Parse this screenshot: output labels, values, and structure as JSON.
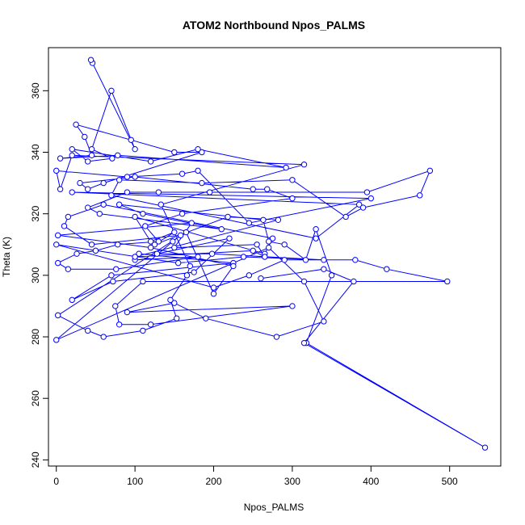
{
  "chart_data": {
    "type": "line",
    "title": "ATOM2 Northbound Npos_PALMS",
    "xlabel": "Npos_PALMS",
    "ylabel": "Theta (K)",
    "xlim": [
      -10,
      565
    ],
    "ylim": [
      238,
      374
    ],
    "xticks": [
      0,
      100,
      200,
      300,
      400,
      500
    ],
    "yticks": [
      240,
      260,
      280,
      300,
      320,
      340,
      360
    ],
    "series": [
      {
        "color": "#0000ff",
        "marker": "open-circle",
        "x": [
          46,
          44,
          100,
          70,
          45,
          71,
          40,
          20,
          120,
          180,
          292,
          78,
          5,
          45,
          36,
          25,
          95,
          150,
          185,
          60,
          40,
          30,
          100,
          250,
          268,
          300,
          160,
          113,
          130,
          78,
          50,
          26,
          2,
          15,
          76,
          180,
          100,
          105,
          225,
          70,
          20,
          72,
          175,
          220,
          128,
          198,
          340,
          238,
          155,
          0,
          200,
          245,
          290,
          380,
          420,
          497,
          110,
          75,
          80,
          120,
          300,
          90,
          150,
          190,
          280,
          340,
          315,
          270,
          0,
          148,
          158,
          45,
          10,
          15,
          60,
          275,
          265,
          100,
          120,
          150,
          125,
          218,
          282,
          100,
          250,
          265,
          255,
          150,
          172,
          2,
          120,
          225,
          200,
          165,
          2,
          40,
          60,
          110,
          153,
          145,
          166,
          170,
          133,
          315,
          20,
          5,
          0,
          90,
          160,
          180,
          245,
          400,
          20,
          385,
          330,
          70,
          80,
          185,
          300,
          368,
          390,
          462,
          475,
          395,
          195,
          130,
          90,
          40,
          55,
          210,
          110,
          80,
          263,
          270,
          290,
          317,
          330,
          350,
          318,
          545,
          315,
          378,
          340,
          260
        ],
        "y": [
          369,
          370,
          341,
          360,
          341,
          338,
          337,
          341,
          337,
          341,
          335,
          339,
          338,
          339,
          345,
          349,
          344,
          340,
          340,
          330,
          328,
          330,
          332,
          328,
          328,
          325,
          320,
          316,
          311,
          310,
          308,
          307,
          304,
          302,
          302,
          306,
          305,
          307,
          304,
          300,
          292,
          298,
          301,
          312,
          307,
          307,
          305,
          306,
          304,
          310,
          296,
          300,
          305,
          305,
          302,
          298,
          298,
          290,
          284,
          284,
          290,
          288,
          291,
          286,
          280,
          285,
          298,
          309,
          279,
          311,
          313,
          310,
          316,
          319,
          323,
          312,
          307,
          319,
          311,
          314,
          310,
          319,
          318,
          306,
          308,
          306,
          310,
          309,
          317,
          313,
          309,
          303,
          294,
          314,
          287,
          282,
          280,
          282,
          286,
          292,
          300,
          303,
          323,
          336,
          339,
          328,
          334,
          332,
          333,
          334,
          317,
          325,
          327,
          323,
          312,
          326,
          331,
          330,
          331,
          319,
          322,
          326,
          334,
          327,
          327,
          327,
          327,
          322,
          320,
          315,
          320,
          323,
          318,
          311,
          310,
          305,
          315,
          300,
          278,
          244,
          278,
          298,
          302,
          299
        ]
      }
    ]
  }
}
